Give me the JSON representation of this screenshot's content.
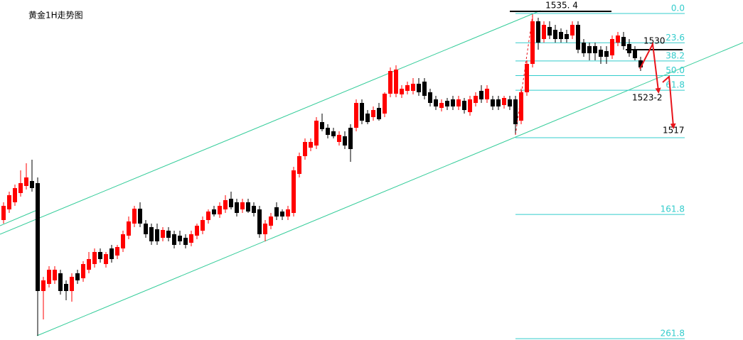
{
  "chart_data": {
    "type": "candlestick",
    "title": "黄金1H走势图",
    "ylim": [
      1489,
      1537
    ],
    "color_up": "#ff0000",
    "color_down": "#000000",
    "channel_color": "#33cc99",
    "fib_color": "#33cccc",
    "high_mark": {
      "value": 1535.4,
      "label": "1535. 4"
    },
    "resistance": 1530,
    "target_label": "1523-2",
    "support": 1517,
    "fib_levels": [
      {
        "value": 0,
        "label": "0.0"
      },
      23.6,
      38.2,
      {
        "value": 50,
        "label": "50.0"
      },
      61.8,
      161.8,
      261.8
    ],
    "candles": [
      [
        1506.0,
        1508.5,
        1505.5,
        1508.0
      ],
      [
        1507.5,
        1510.0,
        1507.0,
        1509.5
      ],
      [
        1508.5,
        1511.0,
        1508.0,
        1510.5
      ],
      [
        1509.8,
        1513.0,
        1509.3,
        1511.2
      ],
      [
        1510.8,
        1514.0,
        1510.3,
        1512.0
      ],
      [
        1511.5,
        1514.5,
        1510.0,
        1510.5
      ],
      [
        1511.2,
        1512.0,
        1489.7,
        1496.0
      ],
      [
        1496.0,
        1498.0,
        1492.0,
        1497.5
      ],
      [
        1497.0,
        1499.5,
        1496.5,
        1499.0
      ],
      [
        1497.5,
        1499.5,
        1497.0,
        1499.0
      ],
      [
        1498.5,
        1499.0,
        1495.5,
        1496.0
      ],
      [
        1497.0,
        1497.5,
        1494.7,
        1496.0
      ],
      [
        1496.0,
        1498.5,
        1494.5,
        1498.0
      ],
      [
        1498.5,
        1499.0,
        1497.0,
        1497.5
      ],
      [
        1497.8,
        1500.2,
        1497.3,
        1499.8
      ],
      [
        1499.0,
        1501.5,
        1498.5,
        1500.5
      ],
      [
        1499.8,
        1502.0,
        1499.3,
        1501.5
      ],
      [
        1501.5,
        1502.0,
        1500.0,
        1500.5
      ],
      [
        1499.8,
        1501.5,
        1499.3,
        1501.2
      ],
      [
        1502.0,
        1502.5,
        1500.0,
        1500.5
      ],
      [
        1501.0,
        1502.5,
        1500.5,
        1502.2
      ],
      [
        1502.0,
        1504.5,
        1501.5,
        1504.0
      ],
      [
        1503.8,
        1506.5,
        1503.3,
        1505.8
      ],
      [
        1505.5,
        1508.0,
        1505.0,
        1507.6
      ],
      [
        1507.6,
        1508.5,
        1505.0,
        1505.5
      ],
      [
        1505.5,
        1506.0,
        1503.5,
        1504.0
      ],
      [
        1505.0,
        1505.5,
        1502.5,
        1503.0
      ],
      [
        1504.7,
        1505.5,
        1502.5,
        1503.0
      ],
      [
        1503.5,
        1505.0,
        1503.0,
        1504.6
      ],
      [
        1504.5,
        1505.0,
        1503.0,
        1503.5
      ],
      [
        1504.0,
        1504.5,
        1502.0,
        1502.5
      ],
      [
        1503.8,
        1504.5,
        1502.5,
        1503.0
      ],
      [
        1503.5,
        1504.0,
        1502.0,
        1502.5
      ],
      [
        1502.8,
        1504.5,
        1502.3,
        1504.0
      ],
      [
        1503.8,
        1505.5,
        1503.3,
        1505.2
      ],
      [
        1504.5,
        1506.5,
        1504.0,
        1506.0
      ],
      [
        1506.0,
        1507.5,
        1505.5,
        1507.2
      ],
      [
        1507.5,
        1508.0,
        1506.5,
        1506.8
      ],
      [
        1506.8,
        1508.5,
        1506.3,
        1508.0
      ],
      [
        1507.5,
        1509.5,
        1507.0,
        1508.8
      ],
      [
        1509.0,
        1510.0,
        1507.5,
        1507.8
      ],
      [
        1508.5,
        1509.0,
        1506.5,
        1507.0
      ],
      [
        1507.5,
        1509.0,
        1507.0,
        1508.5
      ],
      [
        1508.5,
        1509.0,
        1507.0,
        1507.2
      ],
      [
        1508.0,
        1508.5,
        1506.5,
        1507.0
      ],
      [
        1507.5,
        1508.0,
        1503.5,
        1504.0
      ],
      [
        1504.0,
        1506.0,
        1503.0,
        1505.5
      ],
      [
        1505.2,
        1507.0,
        1504.7,
        1506.5
      ],
      [
        1507.8,
        1508.5,
        1506.0,
        1506.5
      ],
      [
        1507.2,
        1507.5,
        1506.0,
        1506.5
      ],
      [
        1506.5,
        1508.0,
        1506.0,
        1507.5
      ],
      [
        1507.0,
        1513.5,
        1506.5,
        1513.0
      ],
      [
        1512.5,
        1515.5,
        1512.0,
        1515.0
      ],
      [
        1515.0,
        1517.5,
        1514.5,
        1517.0
      ],
      [
        1516.2,
        1517.5,
        1515.7,
        1517.0
      ],
      [
        1516.5,
        1520.5,
        1516.0,
        1520.0
      ],
      [
        1519.8,
        1521.0,
        1518.5,
        1518.8
      ],
      [
        1519.0,
        1519.5,
        1517.5,
        1518.0
      ],
      [
        1518.5,
        1519.0,
        1517.5,
        1517.8
      ],
      [
        1517.0,
        1518.5,
        1516.5,
        1518.0
      ],
      [
        1517.8,
        1518.5,
        1516.0,
        1516.5
      ],
      [
        1519.0,
        1519.5,
        1514.2,
        1516.0
      ],
      [
        1519.0,
        1523.0,
        1518.5,
        1522.5
      ],
      [
        1522.5,
        1523.0,
        1519.5,
        1520.0
      ],
      [
        1521.0,
        1521.5,
        1519.5,
        1519.8
      ],
      [
        1520.5,
        1522.0,
        1520.0,
        1521.5
      ],
      [
        1521.8,
        1522.5,
        1520.0,
        1520.2
      ],
      [
        1521.0,
        1524.0,
        1520.5,
        1523.8
      ],
      [
        1523.8,
        1527.5,
        1523.3,
        1527.0
      ],
      [
        1523.8,
        1527.8,
        1523.3,
        1527.2
      ],
      [
        1523.7,
        1525.0,
        1523.2,
        1524.5
      ],
      [
        1524.2,
        1525.5,
        1523.7,
        1525.0
      ],
      [
        1524.2,
        1526.0,
        1523.7,
        1525.2
      ],
      [
        1525.2,
        1526.0,
        1523.5,
        1524.0
      ],
      [
        1525.5,
        1526.0,
        1523.0,
        1523.5
      ],
      [
        1524.0,
        1524.5,
        1522.0,
        1522.5
      ],
      [
        1523.0,
        1523.5,
        1521.5,
        1522.0
      ],
      [
        1521.8,
        1523.0,
        1521.3,
        1522.5
      ],
      [
        1522.8,
        1523.2,
        1521.5,
        1522.0
      ],
      [
        1523.0,
        1523.5,
        1521.5,
        1522.0
      ],
      [
        1522.0,
        1523.5,
        1521.5,
        1523.0
      ],
      [
        1522.8,
        1523.2,
        1521.0,
        1521.5
      ],
      [
        1521.2,
        1523.5,
        1520.7,
        1523.0
      ],
      [
        1522.5,
        1524.0,
        1522.0,
        1523.5
      ],
      [
        1524.2,
        1525.0,
        1522.5,
        1523.0
      ],
      [
        1523.0,
        1525.0,
        1522.5,
        1524.5
      ],
      [
        1523.0,
        1523.5,
        1521.5,
        1522.0
      ],
      [
        1523.0,
        1523.5,
        1521.5,
        1522.0
      ],
      [
        1522.2,
        1523.5,
        1521.7,
        1523.2
      ],
      [
        1523.0,
        1523.5,
        1521.5,
        1522.0
      ],
      [
        1523.0,
        1523.5,
        1518.0,
        1519.5
      ],
      [
        1520.0,
        1524.5,
        1519.5,
        1524.0
      ],
      [
        1524.0,
        1528.5,
        1523.5,
        1528.0
      ],
      [
        1528.0,
        1535.0,
        1527.5,
        1534.0
      ],
      [
        1534.0,
        1534.5,
        1530.0,
        1531.0
      ],
      [
        1531.5,
        1534.0,
        1531.0,
        1533.5
      ],
      [
        1533.2,
        1534.0,
        1531.5,
        1532.0
      ],
      [
        1532.8,
        1533.5,
        1531.0,
        1531.5
      ],
      [
        1532.5,
        1533.0,
        1531.0,
        1531.5
      ],
      [
        1532.2,
        1532.8,
        1531.0,
        1531.5
      ],
      [
        1532.0,
        1534.0,
        1531.5,
        1533.5
      ],
      [
        1533.5,
        1534.0,
        1529.5,
        1530.0
      ],
      [
        1531.0,
        1531.5,
        1529.0,
        1529.5
      ],
      [
        1530.5,
        1531.0,
        1528.5,
        1529.5
      ],
      [
        1530.5,
        1531.0,
        1528.5,
        1529.5
      ],
      [
        1530.0,
        1530.5,
        1528.0,
        1529.0
      ],
      [
        1529.8,
        1530.5,
        1528.0,
        1529.0
      ],
      [
        1529.2,
        1532.0,
        1528.7,
        1531.5
      ],
      [
        1531.0,
        1532.5,
        1530.5,
        1532.0
      ],
      [
        1531.8,
        1532.5,
        1530.0,
        1530.5
      ],
      [
        1530.8,
        1531.5,
        1529.0,
        1529.5
      ],
      [
        1530.0,
        1530.5,
        1528.5,
        1528.8
      ],
      [
        1528.5,
        1529.0,
        1527.0,
        1527.5
      ]
    ]
  }
}
